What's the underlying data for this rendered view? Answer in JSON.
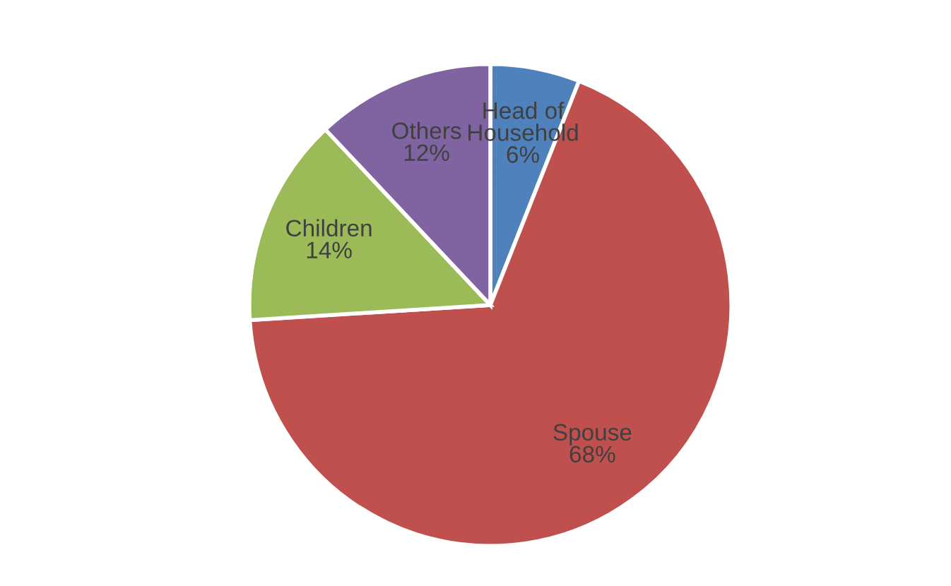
{
  "chart_data": {
    "type": "pie",
    "categories": [
      "Head of Household",
      "Spouse",
      "Children",
      "Others"
    ],
    "values": [
      6,
      68,
      14,
      12
    ],
    "colors": [
      "#4f81bd",
      "#c0504d",
      "#9bbb59",
      "#8064a2"
    ],
    "value_labels": [
      "6%",
      "68%",
      "14%",
      "12%"
    ],
    "legend": false
  }
}
